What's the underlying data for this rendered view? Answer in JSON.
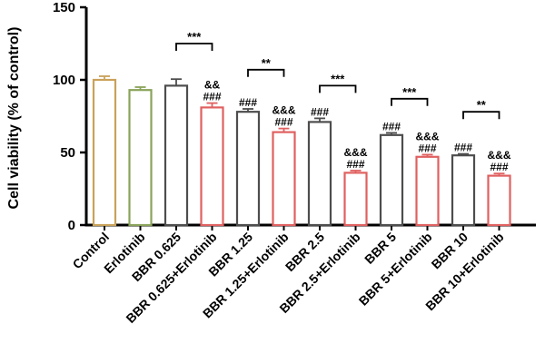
{
  "chart_data": {
    "type": "bar",
    "ylabel": "Cell viability (% of control)",
    "ylim": [
      0,
      150
    ],
    "yticks": [
      0,
      50,
      100,
      150
    ],
    "categories": [
      "Control",
      "Erlotinib",
      "BBR 0.625",
      "BBR 0.625+Erlotinib",
      "BBR 1.25",
      "BBR 1.25+Erlotinib",
      "BBR 2.5",
      "BBR 2.5+Erlotinib",
      "BBR 5",
      "BBR 5+Erlotinib",
      "BBR 10",
      "BBR 10+Erlotinib"
    ],
    "values": [
      100,
      93,
      96,
      81,
      78,
      64,
      71,
      36,
      62,
      47,
      48,
      34
    ],
    "errors": [
      2.5,
      2,
      4.5,
      3,
      2,
      2.5,
      2.5,
      1.5,
      1.5,
      1.5,
      1,
      1.5
    ],
    "bar_colors": [
      "#c9a25a",
      "#8aa35a",
      "#4d4d4d",
      "#e06060",
      "#4d4d4d",
      "#e06060",
      "#4d4d4d",
      "#e06060",
      "#4d4d4d",
      "#e06060",
      "#4d4d4d",
      "#e06060"
    ],
    "annotations": [
      {
        "bar": 3,
        "lines": [
          "&&",
          "###"
        ]
      },
      {
        "bar": 4,
        "lines": [
          "###"
        ]
      },
      {
        "bar": 5,
        "lines": [
          "&&&",
          "###"
        ]
      },
      {
        "bar": 6,
        "lines": [
          "###"
        ]
      },
      {
        "bar": 7,
        "lines": [
          "&&&",
          "###"
        ]
      },
      {
        "bar": 8,
        "lines": [
          "###"
        ]
      },
      {
        "bar": 9,
        "lines": [
          "&&&",
          "###"
        ]
      },
      {
        "bar": 10,
        "lines": [
          "###"
        ]
      },
      {
        "bar": 11,
        "lines": [
          "&&&",
          "###"
        ]
      }
    ],
    "comparisons": [
      {
        "from": 2,
        "to": 3,
        "label": "***",
        "level": 125
      },
      {
        "from": 4,
        "to": 5,
        "label": "**",
        "level": 107
      },
      {
        "from": 6,
        "to": 7,
        "label": "***",
        "level": 96
      },
      {
        "from": 8,
        "to": 9,
        "label": "***",
        "level": 87
      },
      {
        "from": 10,
        "to": 11,
        "label": "**",
        "level": 78
      }
    ]
  }
}
